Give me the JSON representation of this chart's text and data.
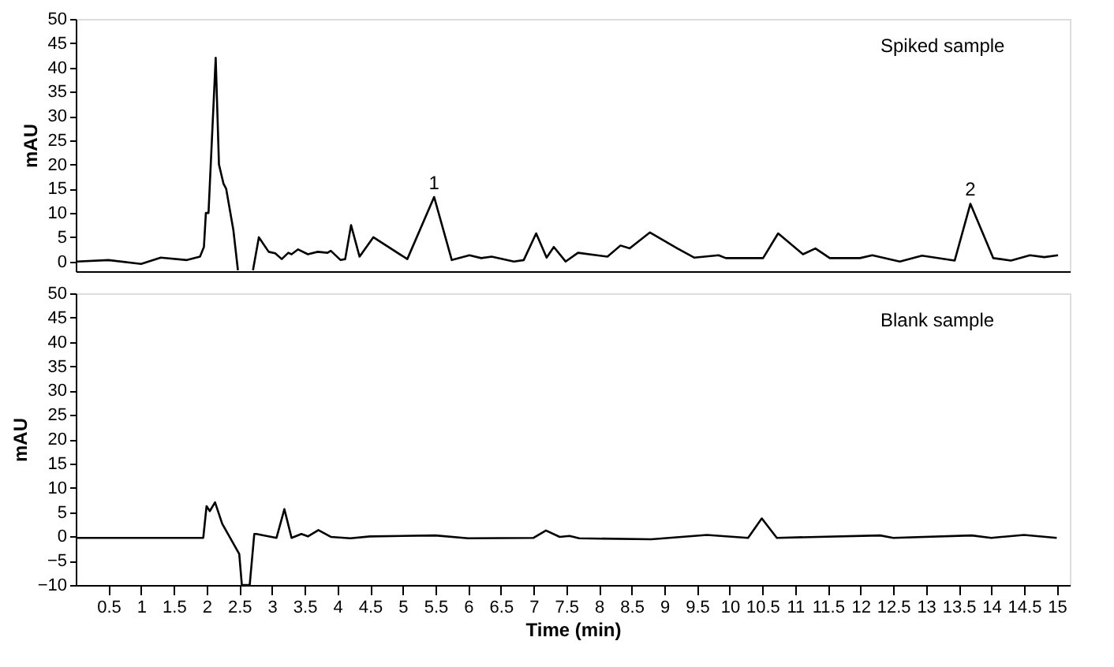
{
  "chart_data": [
    {
      "type": "line",
      "ylabel": "mAU",
      "xlim": [
        0,
        15.2
      ],
      "ylim": [
        -2,
        50
      ],
      "yticks": [
        0,
        5,
        10,
        15,
        20,
        25,
        30,
        35,
        40,
        45,
        50
      ],
      "tick_labels": "y",
      "annotations": [
        "Spiked sample",
        {
          "text": "1",
          "x": 5.48,
          "y": 13.3
        },
        {
          "text": "2",
          "x": 13.68,
          "y": 11.9
        }
      ],
      "x": [
        0.02,
        0.5,
        1.0,
        1.3,
        1.7,
        1.9,
        1.96,
        1.99,
        2.03,
        2.14,
        2.19,
        2.26,
        2.3,
        2.41,
        2.48,
        2.6,
        2.71,
        2.8,
        2.95,
        3.05,
        3.15,
        3.25,
        3.3,
        3.4,
        3.55,
        3.7,
        3.85,
        3.9,
        4.05,
        4.12,
        4.21,
        4.34,
        4.55,
        5.07,
        5.48,
        5.75,
        6.02,
        6.2,
        6.36,
        6.7,
        6.85,
        7.04,
        7.2,
        7.31,
        7.49,
        7.68,
        8.13,
        8.33,
        8.47,
        8.78,
        9.2,
        9.46,
        9.83,
        9.94,
        10.51,
        10.74,
        11.12,
        11.31,
        11.53,
        11.99,
        12.18,
        12.6,
        12.94,
        13.44,
        13.68,
        14.03,
        14.3,
        14.59,
        14.81,
        15.02
      ],
      "series": [
        {
          "color": "#000000",
          "values": [
            0,
            0.3,
            -0.5,
            0.8,
            0.3,
            1,
            3,
            10,
            10,
            42,
            20,
            16,
            15,
            6.5,
            -1.8,
            null,
            -1.8,
            5,
            2,
            1.7,
            0.5,
            1.8,
            1.5,
            2.5,
            1.5,
            2,
            1.8,
            2.2,
            0.3,
            0.5,
            7.5,
            1,
            5,
            0.5,
            13.3,
            0.3,
            1.3,
            0.7,
            1.0,
            0,
            0.3,
            5.8,
            0.8,
            3,
            0,
            1.8,
            1,
            3.3,
            2.7,
            6.0,
            2.7,
            0.8,
            1.3,
            0.7,
            0.7,
            5.8,
            1.5,
            2.7,
            0.7,
            0.7,
            1.3,
            0,
            1.2,
            0.2,
            11.9,
            0.7,
            0.2,
            1.3,
            0.9,
            1.3
          ]
        }
      ]
    },
    {
      "type": "line",
      "ylabel": "mAU",
      "xlabel": "Time (min)",
      "xlim": [
        0,
        15.2
      ],
      "xticks": [
        0.5,
        1,
        1.5,
        2,
        2.5,
        3,
        3.5,
        4,
        4.5,
        5,
        5.5,
        6,
        6.5,
        7,
        7.5,
        8,
        8.5,
        9,
        9.5,
        10,
        10.5,
        11,
        11.5,
        12,
        12.5,
        13,
        13.5,
        14,
        14.5,
        15
      ],
      "ylim": [
        -10,
        50
      ],
      "yticks": [
        -10,
        -5,
        0,
        5,
        10,
        15,
        20,
        25,
        30,
        35,
        40,
        45,
        50
      ],
      "annotations": [
        "Blank sample"
      ],
      "x": [
        0.02,
        1.95,
        2.0,
        2.05,
        2.13,
        2.24,
        2.5,
        2.54,
        2.66,
        2.73,
        2.76,
        3.07,
        3.19,
        3.3,
        3.45,
        3.55,
        3.71,
        3.9,
        4.2,
        4.5,
        5.5,
        6.0,
        7.0,
        7.19,
        7.4,
        7.55,
        7.7,
        8.8,
        9.65,
        10.28,
        10.49,
        10.72,
        12.3,
        12.5,
        13.7,
        14.0,
        14.5,
        15.0
      ],
      "series": [
        {
          "color": "#000000",
          "values": [
            -0.3,
            -0.3,
            6.2,
            5.2,
            7,
            2.6,
            -3.6,
            -10,
            -10,
            0.5,
            0.5,
            -0.3,
            5.6,
            -0.3,
            0.5,
            0,
            1.3,
            -0.1,
            -0.4,
            0,
            0.2,
            -0.4,
            -0.3,
            1.2,
            -0.1,
            0.1,
            -0.4,
            -0.6,
            0.3,
            -0.3,
            3.7,
            -0.3,
            0.2,
            -0.3,
            0.2,
            -0.3,
            0.3,
            -0.3
          ]
        }
      ]
    }
  ]
}
